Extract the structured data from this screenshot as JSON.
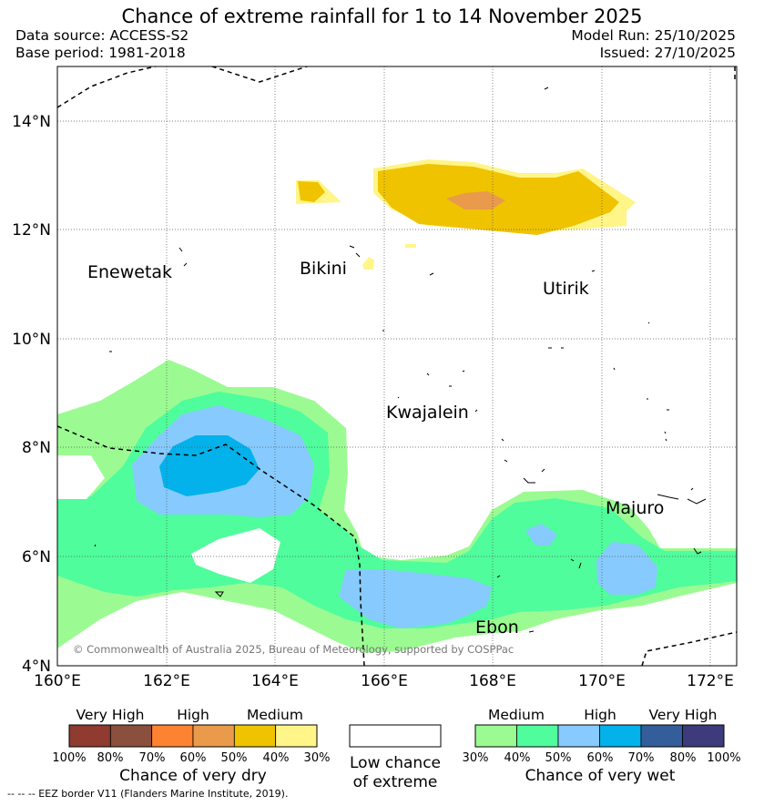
{
  "title": "Chance of extreme rainfall for 1 to 14 November 2025",
  "data_source": "Data source: ACCESS-S2",
  "base_period": "Base period: 1981-2018",
  "model_run": "Model Run: 25/10/2025",
  "issued": "Issued: 27/10/2025",
  "map": {
    "lon_ticks": [
      "160°E",
      "162°E",
      "164°E",
      "166°E",
      "168°E",
      "170°E",
      "172°E"
    ],
    "lat_ticks": [
      "14°N",
      "12°N",
      "10°N",
      "8°N",
      "6°N",
      "4°N"
    ],
    "extent": {
      "lon_min": 160,
      "lon_max": 172.5,
      "lat_min": 4,
      "lat_max": 15
    },
    "places": [
      "Enewetak",
      "Bikini",
      "Utirik",
      "Kwajalein",
      "Majuro",
      "Ebon"
    ],
    "copyright": "© Commonwealth of Australia 2025, Bureau of Meteorology, supported by COSPPac",
    "grid": true
  },
  "legend": {
    "dry": {
      "title": "Chance of very dry",
      "categories": [
        "Very High",
        "High",
        "Medium"
      ],
      "ticks": [
        "100%",
        "80%",
        "70%",
        "60%",
        "50%",
        "40%",
        "30%"
      ],
      "colors": [
        "#8f3b2f",
        "#8b4f3d",
        "#fd8330",
        "#e99a4b",
        "#efc300",
        "#fff588"
      ]
    },
    "neutral": {
      "line1": "Low chance",
      "line2": "of extreme",
      "color": "#ffffff"
    },
    "wet": {
      "title": "Chance of very wet",
      "categories": [
        "Medium",
        "High",
        "Very High"
      ],
      "ticks": [
        "30%",
        "40%",
        "50%",
        "60%",
        "70%",
        "80%",
        "100%"
      ],
      "colors": [
        "#9bfb92",
        "#4ffd9c",
        "#87cafe",
        "#03b2ea",
        "#335e9b",
        "#3e3b7c"
      ]
    }
  },
  "footnote": "--  --  -- EEZ border V11 (Flanders Marine Institute, 2019)."
}
